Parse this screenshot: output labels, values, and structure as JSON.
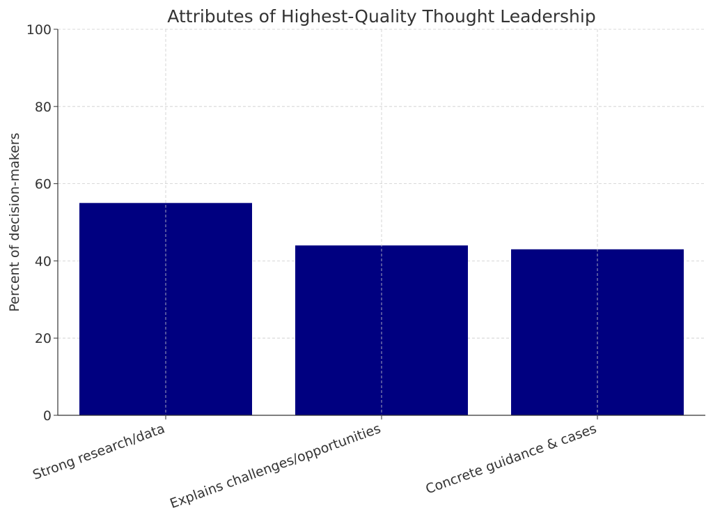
{
  "chart_data": {
    "type": "bar",
    "title": "Attributes of Highest-Quality Thought Leadership",
    "xlabel": "",
    "ylabel": "Percent of decision-makers",
    "categories": [
      "Strong research/data",
      "Explains challenges/opportunities",
      "Concrete guidance & cases"
    ],
    "values": [
      55,
      44,
      43
    ],
    "ylim": [
      0,
      100
    ],
    "yticks": [
      0,
      20,
      40,
      60,
      80,
      100
    ],
    "grid": true,
    "bar_color": "#000080",
    "grid_color": "#cccccc"
  }
}
